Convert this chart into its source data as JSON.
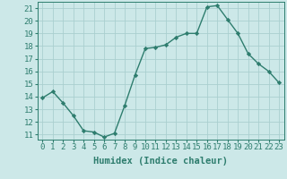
{
  "x": [
    0,
    1,
    2,
    3,
    4,
    5,
    6,
    7,
    8,
    9,
    10,
    11,
    12,
    13,
    14,
    15,
    16,
    17,
    18,
    19,
    20,
    21,
    22,
    23
  ],
  "y": [
    13.9,
    14.4,
    13.5,
    12.5,
    11.3,
    11.2,
    10.8,
    11.1,
    13.3,
    15.7,
    17.8,
    17.9,
    18.1,
    18.7,
    19.0,
    19.0,
    21.1,
    21.2,
    20.1,
    19.0,
    17.4,
    16.6,
    16.0,
    15.1
  ],
  "line_color": "#2e7d6e",
  "marker": "D",
  "marker_size": 2.2,
  "bg_color": "#cce8e8",
  "grid_color": "#aacfcf",
  "xlabel": "Humidex (Indice chaleur)",
  "ylim": [
    10.6,
    21.5
  ],
  "xlim": [
    -0.5,
    23.5
  ],
  "yticks": [
    11,
    12,
    13,
    14,
    15,
    16,
    17,
    18,
    19,
    20,
    21
  ],
  "xtick_labels": [
    "0",
    "1",
    "2",
    "3",
    "4",
    "5",
    "6",
    "7",
    "8",
    "9",
    "10",
    "11",
    "12",
    "13",
    "14",
    "15",
    "16",
    "17",
    "18",
    "19",
    "20",
    "21",
    "22",
    "23"
  ],
  "xlabel_fontsize": 7.5,
  "tick_fontsize": 6.5
}
